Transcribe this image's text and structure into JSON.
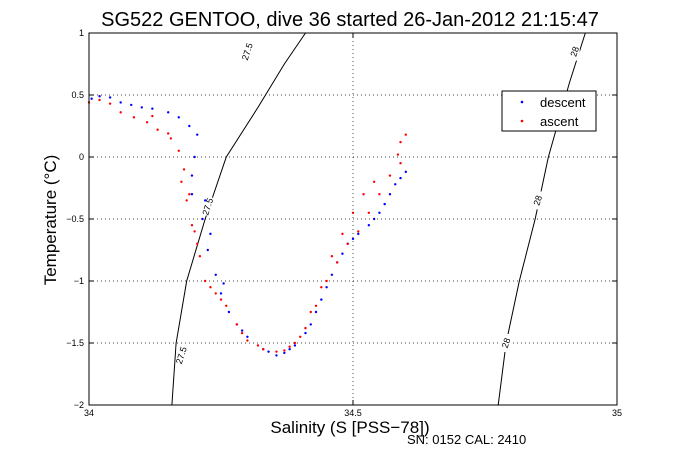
{
  "chart_data": {
    "type": "scatter",
    "title": "SG522 GENTOO, dive 36 started 26-Jan-2012 21:15:47",
    "xlabel": "Salinity (S [PSS−78])",
    "ylabel": "Temperature (°C)",
    "xlim": [
      34,
      35
    ],
    "ylim": [
      -2,
      1
    ],
    "xticks": [
      34,
      34.5,
      35
    ],
    "xtick_labels": [
      "34",
      "34.5",
      "35"
    ],
    "yticks": [
      -2,
      -1.5,
      -1,
      -0.5,
      0,
      0.5,
      1
    ],
    "ytick_labels": [
      "−2",
      "−1.5",
      "−1",
      "−0.5",
      "0",
      "0.5",
      "1"
    ],
    "grid": true,
    "grid_style": "dotted",
    "legend_position": "top-right",
    "footer": "SN: 0152  CAL: 2410",
    "density_contours": [
      {
        "label": "27.5",
        "points": [
          [
            34.41,
            1.0
          ],
          [
            34.37,
            0.75
          ],
          [
            34.32,
            0.4
          ],
          [
            34.26,
            0.0
          ],
          [
            34.22,
            -0.5
          ],
          [
            34.185,
            -1.0
          ],
          [
            34.165,
            -1.5
          ],
          [
            34.157,
            -2.0
          ]
        ],
        "label_positions": [
          [
            34.3,
            0.85
          ],
          [
            34.225,
            -0.4
          ],
          [
            34.175,
            -1.6
          ]
        ]
      },
      {
        "label": "28",
        "points": [
          [
            34.94,
            1.0
          ],
          [
            34.91,
            0.6
          ],
          [
            34.89,
            0.3
          ],
          [
            34.87,
            0.0
          ],
          [
            34.845,
            -0.5
          ],
          [
            34.815,
            -1.0
          ],
          [
            34.79,
            -1.5
          ],
          [
            34.775,
            -2.0
          ]
        ],
        "label_positions": [
          [
            34.92,
            0.85
          ],
          [
            34.85,
            -0.35
          ],
          [
            34.79,
            -1.5
          ]
        ]
      }
    ],
    "series": [
      {
        "name": "descent",
        "color": "#0000ff",
        "points": [
          [
            34.005,
            0.47
          ],
          [
            34.02,
            0.49
          ],
          [
            34.04,
            0.48
          ],
          [
            34.06,
            0.44
          ],
          [
            34.08,
            0.42
          ],
          [
            34.1,
            0.4
          ],
          [
            34.12,
            0.39
          ],
          [
            34.15,
            0.36
          ],
          [
            34.17,
            0.32
          ],
          [
            34.19,
            0.25
          ],
          [
            34.205,
            0.18
          ],
          [
            34.2,
            0.0
          ],
          [
            34.195,
            -0.15
          ],
          [
            34.195,
            -0.3
          ],
          [
            34.215,
            -0.5
          ],
          [
            34.225,
            -0.75
          ],
          [
            34.24,
            -0.95
          ],
          [
            34.25,
            -1.1
          ],
          [
            34.265,
            -1.25
          ],
          [
            34.28,
            -1.35
          ],
          [
            34.3,
            -1.45
          ],
          [
            34.33,
            -1.55
          ],
          [
            34.355,
            -1.6
          ],
          [
            34.37,
            -1.58
          ],
          [
            34.39,
            -1.52
          ],
          [
            34.41,
            -1.42
          ],
          [
            34.43,
            -1.25
          ],
          [
            34.45,
            -1.05
          ],
          [
            34.47,
            -0.85
          ],
          [
            34.49,
            -0.7
          ],
          [
            34.51,
            -0.62
          ],
          [
            34.53,
            -0.55
          ],
          [
            34.55,
            -0.45
          ],
          [
            34.57,
            -0.3
          ],
          [
            34.59,
            -0.17
          ],
          [
            34.6,
            -0.12
          ],
          [
            34.22,
            -0.35
          ],
          [
            34.23,
            -0.62
          ],
          [
            34.255,
            -1.02
          ],
          [
            34.29,
            -1.4
          ],
          [
            34.34,
            -1.57
          ],
          [
            34.38,
            -1.55
          ],
          [
            34.42,
            -1.35
          ],
          [
            34.44,
            -1.15
          ],
          [
            34.46,
            -0.95
          ],
          [
            34.48,
            -0.78
          ],
          [
            34.5,
            -0.66
          ],
          [
            34.54,
            -0.5
          ],
          [
            34.56,
            -0.38
          ],
          [
            34.58,
            -0.22
          ]
        ]
      },
      {
        "name": "ascent",
        "color": "#ff0000",
        "points": [
          [
            34.0,
            0.44
          ],
          [
            34.02,
            0.46
          ],
          [
            34.04,
            0.43
          ],
          [
            34.06,
            0.36
          ],
          [
            34.085,
            0.32
          ],
          [
            34.11,
            0.28
          ],
          [
            34.13,
            0.22
          ],
          [
            34.15,
            0.19
          ],
          [
            34.17,
            0.05
          ],
          [
            34.18,
            -0.1
          ],
          [
            34.19,
            -0.3
          ],
          [
            34.2,
            -0.6
          ],
          [
            34.21,
            -0.8
          ],
          [
            34.22,
            -1.0
          ],
          [
            34.24,
            -1.1
          ],
          [
            34.26,
            -1.2
          ],
          [
            34.28,
            -1.35
          ],
          [
            34.3,
            -1.48
          ],
          [
            34.33,
            -1.55
          ],
          [
            34.355,
            -1.57
          ],
          [
            34.37,
            -1.56
          ],
          [
            34.39,
            -1.5
          ],
          [
            34.41,
            -1.38
          ],
          [
            34.43,
            -1.2
          ],
          [
            34.45,
            -1.0
          ],
          [
            34.47,
            -0.85
          ],
          [
            34.49,
            -0.7
          ],
          [
            34.51,
            -0.6
          ],
          [
            34.53,
            -0.45
          ],
          [
            34.55,
            -0.3
          ],
          [
            34.57,
            -0.15
          ],
          [
            34.59,
            -0.05
          ],
          [
            34.6,
            0.18
          ],
          [
            34.59,
            0.12
          ],
          [
            34.585,
            0.02
          ],
          [
            34.54,
            -0.2
          ],
          [
            34.52,
            -0.3
          ],
          [
            34.5,
            -0.45
          ],
          [
            34.48,
            -0.62
          ],
          [
            34.46,
            -0.8
          ],
          [
            34.44,
            -1.05
          ],
          [
            34.42,
            -1.25
          ],
          [
            34.4,
            -1.45
          ],
          [
            34.38,
            -1.53
          ],
          [
            34.32,
            -1.52
          ],
          [
            34.29,
            -1.42
          ],
          [
            34.25,
            -1.15
          ],
          [
            34.23,
            -1.05
          ],
          [
            34.205,
            -0.7
          ],
          [
            34.195,
            -0.55
          ],
          [
            34.185,
            -0.35
          ],
          [
            34.175,
            -0.2
          ],
          [
            34.155,
            0.15
          ],
          [
            34.12,
            0.33
          ]
        ]
      }
    ]
  }
}
